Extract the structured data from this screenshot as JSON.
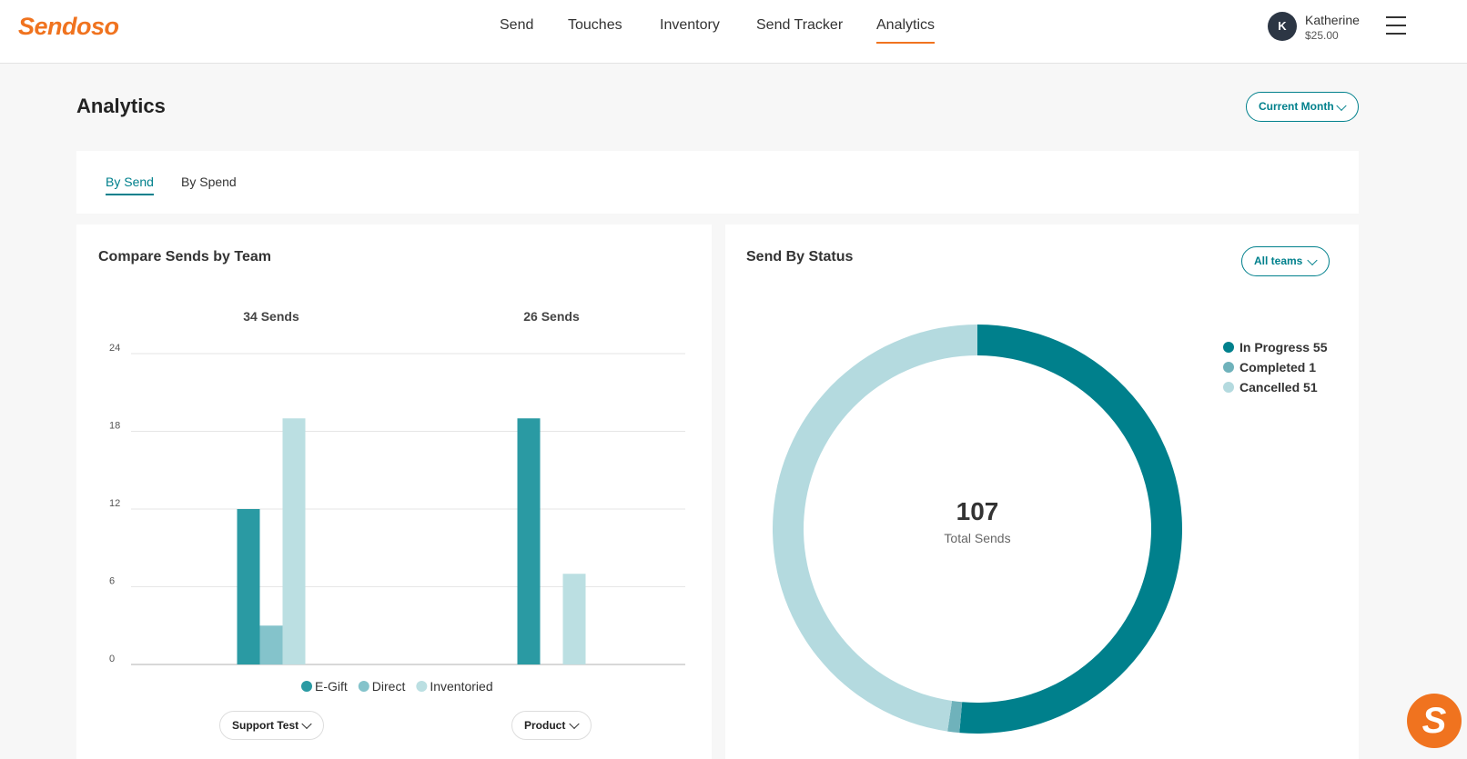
{
  "brand": {
    "logo_text": "Sendoso",
    "accent_color": "#f0731f",
    "primary_color": "#00808c"
  },
  "nav": {
    "items": [
      {
        "label": "Send"
      },
      {
        "label": "Touches"
      },
      {
        "label": "Inventory"
      },
      {
        "label": "Send Tracker"
      },
      {
        "label": "Analytics",
        "active": true
      }
    ]
  },
  "user": {
    "initial": "K",
    "name": "Katherine",
    "balance": "$25.00"
  },
  "page": {
    "title": "Analytics",
    "period_selector": "Current Month"
  },
  "tabs": [
    {
      "label": "By Send",
      "active": true
    },
    {
      "label": "By Spend"
    }
  ],
  "compare_card": {
    "title": "Compare Sends by Team",
    "team_selectors": [
      "Support Test",
      "Product"
    ]
  },
  "status_card": {
    "title": "Send By Status",
    "team_filter": "All teams",
    "center_value": "107",
    "center_label": "Total Sends"
  },
  "chart_data": [
    {
      "type": "bar",
      "categories": [
        "Support Test",
        "Product"
      ],
      "group_totals": [
        "34 Sends",
        "26 Sends"
      ],
      "series": [
        {
          "name": "E-Gift",
          "color": "#2a9aa3",
          "values": [
            12,
            19
          ]
        },
        {
          "name": "Direct",
          "color": "#84c3cb",
          "values": [
            3,
            0
          ]
        },
        {
          "name": "Inventoried",
          "color": "#bbdfe2",
          "values": [
            19,
            7
          ]
        }
      ],
      "yticks": [
        0,
        6,
        12,
        18,
        24
      ],
      "ylim": [
        0,
        24
      ],
      "legend": "bottom-center",
      "grid": true
    },
    {
      "type": "pie",
      "donut": true,
      "slices": [
        {
          "label": "In Progress",
          "value": 55,
          "color": "#00808c"
        },
        {
          "label": "Completed",
          "value": 1,
          "color": "#6fb2bb"
        },
        {
          "label": "Cancelled",
          "value": 51,
          "color": "#b4dadf"
        }
      ],
      "legend": "top-right"
    }
  ]
}
